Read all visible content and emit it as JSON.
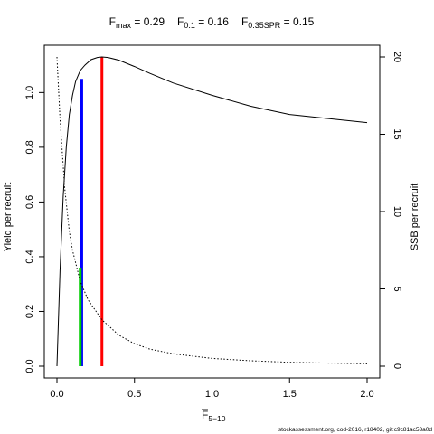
{
  "chart_data": {
    "type": "line",
    "title": {
      "fmax_base": "F",
      "fmax_sub": "max",
      "fmax_val": " = 0.29",
      "f01_base": "F",
      "f01_sub": "0.1",
      "f01_val": " = 0.16",
      "fspr_base": "F",
      "fspr_sub": "0.35SPR",
      "fspr_val": " = 0.15"
    },
    "xlabel_base": "F",
    "xlabel_sub": "5−10",
    "ylabel": "Yield per recruit",
    "y2label": "SSB per recruit",
    "xlim": [
      0,
      2
    ],
    "ylim": [
      0,
      1.13
    ],
    "y2lim": [
      0,
      20
    ],
    "x_ticks": [
      "0.0",
      "0.5",
      "1.0",
      "1.5",
      "2.0"
    ],
    "y_ticks": [
      "0.0",
      "0.2",
      "0.4",
      "0.6",
      "0.8",
      "1.0"
    ],
    "y2_ticks": [
      "0",
      "5",
      "10",
      "15",
      "20"
    ],
    "series": [
      {
        "axis": "left",
        "style": "solid",
        "color": "#000000",
        "x": [
          0.0,
          0.02,
          0.04,
          0.06,
          0.08,
          0.1,
          0.12,
          0.15,
          0.18,
          0.22,
          0.26,
          0.29,
          0.33,
          0.4,
          0.5,
          0.6,
          0.75,
          1.0,
          1.25,
          1.5,
          1.75,
          2.0
        ],
        "y": [
          0.0,
          0.35,
          0.62,
          0.8,
          0.92,
          0.99,
          1.04,
          1.08,
          1.1,
          1.12,
          1.128,
          1.13,
          1.128,
          1.118,
          1.095,
          1.07,
          1.035,
          0.99,
          0.95,
          0.92,
          0.905,
          0.89
        ]
      },
      {
        "axis": "right",
        "style": "dotted",
        "color": "#000000",
        "x": [
          0.0,
          0.02,
          0.05,
          0.08,
          0.1,
          0.15,
          0.2,
          0.29,
          0.4,
          0.5,
          0.6,
          0.75,
          1.0,
          1.25,
          1.5,
          1.75,
          2.0
        ],
        "y": [
          20.0,
          16.0,
          11.5,
          8.7,
          7.5,
          5.5,
          4.3,
          3.0,
          2.0,
          1.45,
          1.1,
          0.8,
          0.5,
          0.35,
          0.25,
          0.2,
          0.15
        ]
      }
    ],
    "reference_lines": [
      {
        "x": 0.29,
        "y": 1.13,
        "color": "#ff0000"
      },
      {
        "x": 0.16,
        "y": 1.05,
        "color": "#0000ff"
      },
      {
        "x": 0.15,
        "y": 0.36,
        "color": "#00cc00"
      }
    ],
    "footer": "stockassessment.org, cod-2016, r18402, git:c9c81ac53a0d"
  }
}
